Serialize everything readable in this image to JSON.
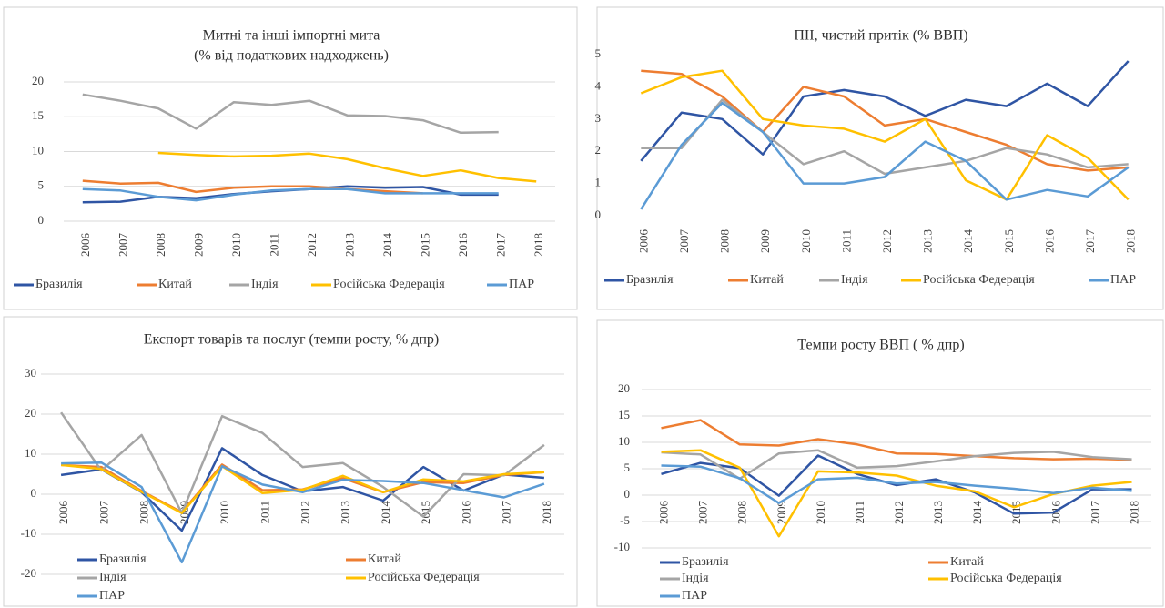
{
  "chart_data": [
    {
      "type": "line",
      "title": "Митні та інші імпортні мита",
      "subtitle": "(% від податкових надходжень)",
      "categories": [
        "2006",
        "2007",
        "2008",
        "2009",
        "2010",
        "2011",
        "2012",
        "2013",
        "2014",
        "2015",
        "2016",
        "2017",
        "2018"
      ],
      "ylim": [
        0,
        20
      ],
      "yticks": [
        0,
        5,
        10,
        15,
        20
      ],
      "grid": true,
      "legend": "bottom",
      "series": [
        {
          "name": "Бразилія",
          "color": "#2f55a4",
          "values": [
            2.7,
            2.8,
            3.5,
            3.3,
            3.9,
            4.3,
            4.6,
            5.0,
            4.8,
            4.9,
            3.8,
            3.8,
            null
          ]
        },
        {
          "name": "Китай",
          "color": "#ed7d31",
          "values": [
            5.8,
            5.4,
            5.5,
            4.2,
            4.8,
            5.0,
            5.0,
            4.6,
            4.3,
            4.0,
            null,
            null,
            null
          ]
        },
        {
          "name": "Індія",
          "color": "#a5a5a5",
          "values": [
            18.2,
            17.3,
            16.2,
            13.3,
            17.1,
            16.7,
            17.3,
            15.2,
            15.1,
            14.5,
            12.7,
            12.8,
            null
          ]
        },
        {
          "name": "Російська Федерація",
          "color": "#ffc000",
          "values": [
            null,
            null,
            9.8,
            9.5,
            9.3,
            9.4,
            9.7,
            8.9,
            7.6,
            6.5,
            7.3,
            6.2,
            5.7
          ]
        },
        {
          "name": "ПАР",
          "color": "#5b9bd5",
          "values": [
            4.6,
            4.4,
            3.5,
            3.0,
            3.8,
            4.4,
            4.6,
            4.6,
            4.0,
            4.0,
            4.0,
            4.0,
            null
          ]
        }
      ]
    },
    {
      "type": "line",
      "title": "ПІІ, чистий притік (% ВВП)",
      "categories": [
        "2006",
        "2007",
        "2008",
        "2009",
        "2010",
        "2011",
        "2012",
        "2013",
        "2014",
        "2015",
        "2016",
        "2017",
        "2018"
      ],
      "ylim": [
        0,
        5
      ],
      "yticks": [
        0,
        1,
        2,
        3,
        4,
        5
      ],
      "grid": false,
      "legend": "bottom",
      "series": [
        {
          "name": "Бразилія",
          "color": "#2f55a4",
          "values": [
            1.7,
            3.2,
            3.0,
            1.9,
            3.7,
            3.9,
            3.7,
            3.1,
            3.6,
            3.4,
            4.1,
            3.4,
            4.8
          ]
        },
        {
          "name": "Китай",
          "color": "#ed7d31",
          "values": [
            4.5,
            4.4,
            3.7,
            2.6,
            4.0,
            3.7,
            2.8,
            3.0,
            2.6,
            2.2,
            1.6,
            1.4,
            1.5
          ]
        },
        {
          "name": "Індія",
          "color": "#a5a5a5",
          "values": [
            2.1,
            2.1,
            3.6,
            2.6,
            1.6,
            2.0,
            1.3,
            1.5,
            1.7,
            2.1,
            1.9,
            1.5,
            1.6
          ]
        },
        {
          "name": "Російська Федерація",
          "color": "#ffc000",
          "values": [
            3.8,
            4.3,
            4.5,
            3.0,
            2.8,
            2.7,
            2.3,
            3.0,
            1.1,
            0.5,
            2.5,
            1.8,
            0.5
          ]
        },
        {
          "name": "ПАР",
          "color": "#5b9bd5",
          "values": [
            0.2,
            2.2,
            3.5,
            2.6,
            1.0,
            1.0,
            1.2,
            2.3,
            1.7,
            0.5,
            0.8,
            0.6,
            1.5
          ]
        }
      ]
    },
    {
      "type": "line",
      "title": "Експорт товарів та послуг (темпи росту, % дпр)",
      "categories": [
        "2006",
        "2007",
        "2008",
        "2009",
        "2010",
        "2011",
        "2012",
        "2013",
        "2014",
        "2015",
        "2016",
        "2017",
        "2018"
      ],
      "ylim": [
        -20,
        30
      ],
      "yticks": [
        -20,
        -10,
        0,
        10,
        20,
        30
      ],
      "grid": true,
      "legend": "bottom",
      "series": [
        {
          "name": "Бразилія",
          "color": "#2f55a4",
          "values": [
            4.8,
            6.2,
            0.5,
            -9.1,
            11.5,
            4.8,
            0.7,
            1.8,
            -1.6,
            6.8,
            0.9,
            4.9,
            4.1
          ]
        },
        {
          "name": "Китай",
          "color": "#ed7d31",
          "values": [
            7.3,
            6.8,
            0.8,
            -4.5,
            7.4,
            1.0,
            1.2,
            4.0,
            0.5,
            3.0,
            2.8,
            4.8,
            5.5
          ]
        },
        {
          "name": "Індія",
          "color": "#a5a5a5",
          "values": [
            20.4,
            5.9,
            14.8,
            -4.7,
            19.5,
            15.3,
            6.8,
            7.8,
            1.8,
            -5.6,
            5.0,
            4.7,
            12.3
          ]
        },
        {
          "name": "Російська Федерація",
          "color": "#ffc000",
          "values": [
            7.3,
            6.3,
            0.6,
            -4.7,
            7.0,
            0.3,
            1.1,
            4.6,
            0.5,
            3.7,
            3.2,
            5.0,
            5.5
          ]
        },
        {
          "name": "ПАР",
          "color": "#5b9bd5",
          "values": [
            7.7,
            7.9,
            1.8,
            -17.0,
            7.0,
            2.4,
            0.5,
            3.6,
            3.3,
            2.8,
            1.0,
            -0.8,
            2.6
          ]
        }
      ]
    },
    {
      "type": "line",
      "title": "Темпи росту ВВП ( % дпр)",
      "categories": [
        "2006",
        "2007",
        "2008",
        "2009",
        "2010",
        "2011",
        "2012",
        "2013",
        "2014",
        "2015",
        "2016",
        "2017",
        "2018"
      ],
      "ylim": [
        -10,
        20
      ],
      "yticks": [
        -10,
        -5,
        0,
        5,
        10,
        15,
        20
      ],
      "grid": true,
      "legend": "bottom",
      "series": [
        {
          "name": "Бразилія",
          "color": "#2f55a4",
          "values": [
            4.0,
            6.1,
            5.1,
            -0.1,
            7.5,
            4.0,
            1.9,
            3.0,
            0.5,
            -3.5,
            -3.3,
            1.1,
            1.1
          ]
        },
        {
          "name": "Китай",
          "color": "#ed7d31",
          "values": [
            12.7,
            14.2,
            9.6,
            9.4,
            10.6,
            9.6,
            7.9,
            7.8,
            7.4,
            7.0,
            6.8,
            6.9,
            6.7
          ]
        },
        {
          "name": "Індія",
          "color": "#a5a5a5",
          "values": [
            8.1,
            7.7,
            3.1,
            7.9,
            8.5,
            5.2,
            5.5,
            6.4,
            7.4,
            8.0,
            8.2,
            7.2,
            6.8
          ]
        },
        {
          "name": "Російська Федерація",
          "color": "#ffc000",
          "values": [
            8.2,
            8.5,
            5.2,
            -7.8,
            4.5,
            4.3,
            3.7,
            1.8,
            0.7,
            -2.3,
            0.2,
            1.8,
            2.5
          ]
        },
        {
          "name": "ПАР",
          "color": "#5b9bd5",
          "values": [
            5.6,
            5.4,
            3.2,
            -1.5,
            3.0,
            3.3,
            2.2,
            2.5,
            1.8,
            1.2,
            0.4,
            1.4,
            0.8
          ]
        }
      ]
    }
  ]
}
